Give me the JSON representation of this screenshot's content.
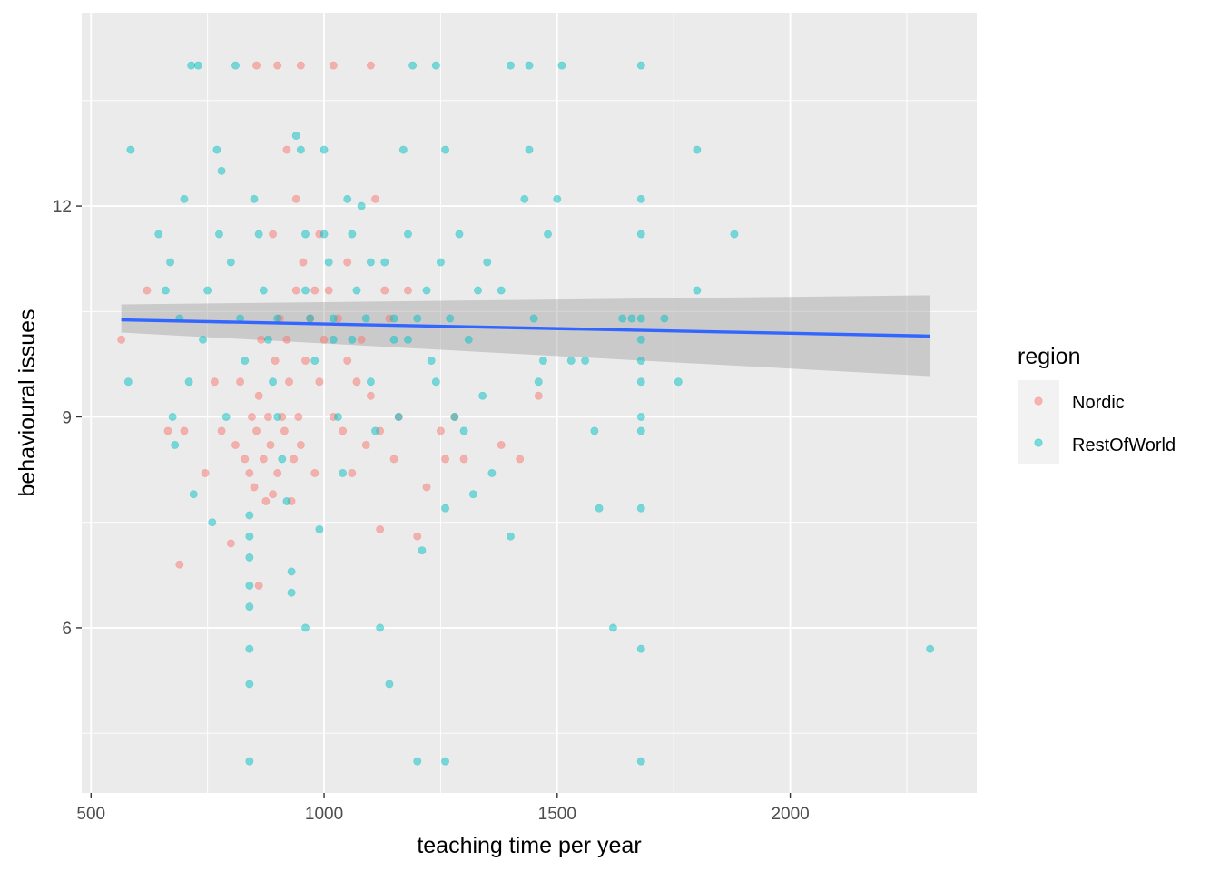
{
  "chart_data": {
    "type": "scatter",
    "title": "",
    "xlabel": "teaching time per year",
    "ylabel": "behavioural issues",
    "xlim": [
      480,
      2400
    ],
    "ylim": [
      3.65,
      14.75
    ],
    "x_ticks": [
      500,
      1000,
      1500,
      2000
    ],
    "y_ticks": [
      6,
      9,
      12
    ],
    "grid": true,
    "panel_background": "#ebebeb",
    "legend": {
      "title": "region",
      "position": "right",
      "entries": [
        {
          "name": "Nordic",
          "color": "#F8766D"
        },
        {
          "name": "RestOfWorld",
          "color": "#00BFC4"
        }
      ]
    },
    "series": [
      {
        "name": "Nordic",
        "color": "#F8766D",
        "points": [
          [
            565,
            10.1
          ],
          [
            620,
            10.8
          ],
          [
            665,
            8.8
          ],
          [
            690,
            6.9
          ],
          [
            700,
            8.8
          ],
          [
            745,
            8.2
          ],
          [
            765,
            9.5
          ],
          [
            780,
            8.8
          ],
          [
            800,
            7.2
          ],
          [
            810,
            8.6
          ],
          [
            820,
            9.5
          ],
          [
            830,
            8.4
          ],
          [
            840,
            8.2
          ],
          [
            845,
            9.0
          ],
          [
            850,
            8.0
          ],
          [
            855,
            8.8
          ],
          [
            860,
            9.3
          ],
          [
            865,
            10.1
          ],
          [
            870,
            8.4
          ],
          [
            875,
            7.8
          ],
          [
            880,
            9.0
          ],
          [
            885,
            8.6
          ],
          [
            890,
            7.9
          ],
          [
            895,
            9.8
          ],
          [
            900,
            8.2
          ],
          [
            905,
            10.4
          ],
          [
            910,
            9.0
          ],
          [
            915,
            8.8
          ],
          [
            920,
            10.1
          ],
          [
            925,
            9.5
          ],
          [
            930,
            7.8
          ],
          [
            935,
            8.4
          ],
          [
            940,
            10.8
          ],
          [
            945,
            9.0
          ],
          [
            950,
            8.6
          ],
          [
            955,
            11.2
          ],
          [
            960,
            9.8
          ],
          [
            970,
            10.4
          ],
          [
            980,
            8.2
          ],
          [
            990,
            9.5
          ],
          [
            1000,
            10.1
          ],
          [
            1010,
            10.8
          ],
          [
            1020,
            9.0
          ],
          [
            1030,
            10.4
          ],
          [
            1040,
            8.8
          ],
          [
            1050,
            9.8
          ],
          [
            1060,
            8.2
          ],
          [
            1080,
            10.1
          ],
          [
            1100,
            9.3
          ],
          [
            1120,
            8.8
          ],
          [
            1140,
            10.4
          ],
          [
            1150,
            8.4
          ],
          [
            1160,
            9.0
          ],
          [
            1180,
            10.8
          ],
          [
            1200,
            7.3
          ],
          [
            1220,
            8.0
          ],
          [
            1250,
            8.8
          ],
          [
            1260,
            8.4
          ],
          [
            1280,
            9.0
          ],
          [
            1300,
            8.4
          ],
          [
            1380,
            8.6
          ],
          [
            1420,
            8.4
          ],
          [
            1460,
            9.3
          ],
          [
            1120,
            7.4
          ],
          [
            860,
            6.6
          ],
          [
            890,
            11.6
          ],
          [
            920,
            12.8
          ],
          [
            990,
            11.6
          ],
          [
            1050,
            11.2
          ],
          [
            1110,
            12.1
          ],
          [
            1130,
            10.8
          ],
          [
            855,
            14.0
          ],
          [
            900,
            14.0
          ],
          [
            950,
            14.0
          ],
          [
            1020,
            14.0
          ],
          [
            1100,
            14.0
          ],
          [
            940,
            12.1
          ],
          [
            980,
            10.8
          ],
          [
            1070,
            9.5
          ],
          [
            1090,
            8.6
          ]
        ]
      },
      {
        "name": "RestOfWorld",
        "color": "#00BFC4",
        "points": [
          [
            585,
            12.8
          ],
          [
            580,
            9.5
          ],
          [
            645,
            11.6
          ],
          [
            660,
            10.8
          ],
          [
            670,
            11.2
          ],
          [
            675,
            9.0
          ],
          [
            680,
            8.6
          ],
          [
            690,
            10.4
          ],
          [
            700,
            12.1
          ],
          [
            710,
            9.5
          ],
          [
            715,
            14.0
          ],
          [
            720,
            7.9
          ],
          [
            730,
            14.0
          ],
          [
            740,
            10.1
          ],
          [
            750,
            10.8
          ],
          [
            760,
            7.5
          ],
          [
            770,
            12.8
          ],
          [
            775,
            11.6
          ],
          [
            780,
            12.5
          ],
          [
            790,
            9.0
          ],
          [
            800,
            11.2
          ],
          [
            810,
            14.0
          ],
          [
            820,
            10.4
          ],
          [
            830,
            9.8
          ],
          [
            840,
            7.6
          ],
          [
            840,
            7.3
          ],
          [
            840,
            7.0
          ],
          [
            840,
            6.6
          ],
          [
            840,
            6.3
          ],
          [
            840,
            5.7
          ],
          [
            840,
            5.2
          ],
          [
            840,
            4.1
          ],
          [
            850,
            12.1
          ],
          [
            860,
            11.6
          ],
          [
            870,
            10.8
          ],
          [
            880,
            10.1
          ],
          [
            890,
            9.5
          ],
          [
            900,
            9.0
          ],
          [
            910,
            8.4
          ],
          [
            920,
            7.8
          ],
          [
            930,
            6.8
          ],
          [
            930,
            6.5
          ],
          [
            940,
            13.0
          ],
          [
            950,
            12.8
          ],
          [
            960,
            6.0
          ],
          [
            960,
            11.6
          ],
          [
            970,
            10.4
          ],
          [
            980,
            9.8
          ],
          [
            990,
            7.4
          ],
          [
            1000,
            12.8
          ],
          [
            1010,
            11.2
          ],
          [
            1020,
            10.1
          ],
          [
            1030,
            9.0
          ],
          [
            1040,
            8.2
          ],
          [
            1050,
            12.1
          ],
          [
            1060,
            11.6
          ],
          [
            1070,
            10.8
          ],
          [
            1080,
            12.0
          ],
          [
            1090,
            10.4
          ],
          [
            1100,
            9.5
          ],
          [
            1110,
            8.8
          ],
          [
            1120,
            6.0
          ],
          [
            1130,
            11.2
          ],
          [
            1140,
            5.2
          ],
          [
            1150,
            10.1
          ],
          [
            1160,
            9.0
          ],
          [
            1170,
            12.8
          ],
          [
            1180,
            11.6
          ],
          [
            1190,
            14.0
          ],
          [
            1200,
            4.1
          ],
          [
            1210,
            7.1
          ],
          [
            1220,
            10.8
          ],
          [
            1230,
            9.8
          ],
          [
            1240,
            14.0
          ],
          [
            1250,
            11.2
          ],
          [
            1260,
            12.8
          ],
          [
            1260,
            7.7
          ],
          [
            1260,
            4.1
          ],
          [
            1270,
            10.4
          ],
          [
            1280,
            9.0
          ],
          [
            1290,
            11.6
          ],
          [
            1300,
            8.8
          ],
          [
            1310,
            10.1
          ],
          [
            1320,
            7.9
          ],
          [
            1330,
            10.8
          ],
          [
            1340,
            9.3
          ],
          [
            1350,
            11.2
          ],
          [
            1360,
            8.2
          ],
          [
            1380,
            10.8
          ],
          [
            1400,
            7.3
          ],
          [
            1400,
            14.0
          ],
          [
            1430,
            12.1
          ],
          [
            1440,
            14.0
          ],
          [
            1440,
            12.8
          ],
          [
            1450,
            10.4
          ],
          [
            1460,
            9.5
          ],
          [
            1470,
            9.8
          ],
          [
            1480,
            11.6
          ],
          [
            1500,
            12.1
          ],
          [
            1510,
            14.0
          ],
          [
            1530,
            9.8
          ],
          [
            1560,
            9.8
          ],
          [
            1580,
            8.8
          ],
          [
            1590,
            7.7
          ],
          [
            1620,
            6.0
          ],
          [
            1640,
            10.4
          ],
          [
            1660,
            10.4
          ],
          [
            1680,
            14.0
          ],
          [
            1680,
            12.1
          ],
          [
            1680,
            11.6
          ],
          [
            1680,
            10.4
          ],
          [
            1680,
            10.1
          ],
          [
            1680,
            9.8
          ],
          [
            1680,
            9.5
          ],
          [
            1680,
            9.0
          ],
          [
            1680,
            8.8
          ],
          [
            1680,
            7.7
          ],
          [
            1680,
            5.7
          ],
          [
            1680,
            4.1
          ],
          [
            1730,
            10.4
          ],
          [
            1760,
            9.5
          ],
          [
            1800,
            12.8
          ],
          [
            1800,
            10.8
          ],
          [
            1880,
            11.6
          ],
          [
            2300,
            5.7
          ],
          [
            1000,
            11.6
          ],
          [
            1020,
            10.4
          ],
          [
            1060,
            10.1
          ],
          [
            1100,
            11.2
          ],
          [
            1150,
            10.4
          ],
          [
            960,
            10.8
          ],
          [
            900,
            10.4
          ],
          [
            1180,
            10.1
          ],
          [
            1240,
            9.5
          ],
          [
            1200,
            10.4
          ]
        ]
      }
    ],
    "trend": {
      "method": "lm",
      "color": "#3366FF",
      "band_color": "#c4c4c4",
      "x": [
        565,
        2300
      ],
      "y": [
        10.38,
        10.15
      ],
      "ci_lower": [
        10.2,
        9.58
      ],
      "ci_upper": [
        10.6,
        10.73
      ]
    }
  }
}
